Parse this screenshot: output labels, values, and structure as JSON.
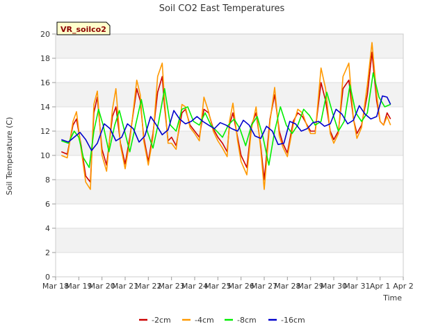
{
  "chart_data": {
    "type": "line",
    "title": "Soil CO2 East Temperatures",
    "xlabel": "Time",
    "ylabel": "Soil Temperature (C)",
    "ylim": [
      0,
      20
    ],
    "yticks": [
      0,
      2,
      4,
      6,
      8,
      10,
      12,
      14,
      16,
      18,
      20
    ],
    "xlim": [
      0,
      15
    ],
    "xticks": [
      {
        "pos": 0,
        "label": "Mar 18"
      },
      {
        "pos": 1,
        "label": "Mar 19"
      },
      {
        "pos": 2,
        "label": "Mar 20"
      },
      {
        "pos": 3,
        "label": "Mar 21"
      },
      {
        "pos": 4,
        "label": "Mar 22"
      },
      {
        "pos": 5,
        "label": "Mar 23"
      },
      {
        "pos": 6,
        "label": "Mar 24"
      },
      {
        "pos": 7,
        "label": "Mar 25"
      },
      {
        "pos": 8,
        "label": "Mar 26"
      },
      {
        "pos": 9,
        "label": "Mar 27"
      },
      {
        "pos": 10,
        "label": "Mar 28"
      },
      {
        "pos": 11,
        "label": "Mar 29"
      },
      {
        "pos": 12,
        "label": "Mar 30"
      },
      {
        "pos": 13,
        "label": "Mar 31"
      },
      {
        "pos": 14,
        "label": "Apr 1"
      },
      {
        "pos": 15,
        "label": "Apr 2"
      }
    ],
    "badge": "VR_soilco2",
    "series": [
      {
        "name": "-2cm",
        "color": "#cc0000",
        "x": [
          0.25,
          0.5,
          0.75,
          0.9,
          1.1,
          1.3,
          1.5,
          1.65,
          1.8,
          2.0,
          2.2,
          2.45,
          2.6,
          2.8,
          3.0,
          3.2,
          3.5,
          3.65,
          3.8,
          4.0,
          4.2,
          4.4,
          4.6,
          4.7,
          4.85,
          5.0,
          5.2,
          5.45,
          5.6,
          5.8,
          6.0,
          6.2,
          6.4,
          6.6,
          6.8,
          7.0,
          7.2,
          7.4,
          7.5,
          7.65,
          7.85,
          8.0,
          8.25,
          8.45,
          8.65,
          8.85,
          9.0,
          9.25,
          9.45,
          9.65,
          9.8,
          10.0,
          10.25,
          10.45,
          10.65,
          10.85,
          11.0,
          11.2,
          11.45,
          11.65,
          11.85,
          12.0,
          12.2,
          12.4,
          12.65,
          12.85,
          13.0,
          13.2,
          13.45,
          13.65,
          13.85,
          14.0,
          14.15,
          14.3,
          14.45
        ],
        "y": [
          10.3,
          10.1,
          12.5,
          13.0,
          10.8,
          8.3,
          7.8,
          13.5,
          14.8,
          10.5,
          9.2,
          13.2,
          14.0,
          11.0,
          9.3,
          11.5,
          15.5,
          14.5,
          11.5,
          9.5,
          11.8,
          15.2,
          16.5,
          14.0,
          11.2,
          11.5,
          10.8,
          13.5,
          13.8,
          12.5,
          12.0,
          11.5,
          13.8,
          13.5,
          12.2,
          11.5,
          11.0,
          10.3,
          12.5,
          13.5,
          11.5,
          10.0,
          9.0,
          12.5,
          13.5,
          10.8,
          8.0,
          13.0,
          15.0,
          12.0,
          11.0,
          10.2,
          12.8,
          13.5,
          13.2,
          12.5,
          12.0,
          12.0,
          16.0,
          14.5,
          12.0,
          11.3,
          12.0,
          15.5,
          16.2,
          13.0,
          11.8,
          12.5,
          15.0,
          18.5,
          14.5,
          12.8,
          12.5,
          13.5,
          13.0
        ]
      },
      {
        "name": "-4cm",
        "color": "#ff9900",
        "x": [
          0.25,
          0.5,
          0.75,
          0.9,
          1.1,
          1.3,
          1.5,
          1.65,
          1.8,
          2.0,
          2.2,
          2.45,
          2.6,
          2.8,
          3.0,
          3.2,
          3.5,
          3.65,
          3.8,
          4.0,
          4.2,
          4.4,
          4.6,
          4.7,
          4.85,
          5.0,
          5.2,
          5.45,
          5.6,
          5.8,
          6.0,
          6.2,
          6.4,
          6.6,
          6.8,
          7.0,
          7.2,
          7.4,
          7.5,
          7.65,
          7.85,
          8.0,
          8.25,
          8.45,
          8.65,
          8.85,
          9.0,
          9.25,
          9.45,
          9.65,
          9.8,
          10.0,
          10.25,
          10.45,
          10.65,
          10.85,
          11.0,
          11.2,
          11.45,
          11.65,
          11.85,
          12.0,
          12.2,
          12.4,
          12.65,
          12.85,
          13.0,
          13.2,
          13.45,
          13.65,
          13.85,
          14.0,
          14.15,
          14.3,
          14.45
        ],
        "y": [
          10.0,
          9.8,
          12.8,
          13.6,
          10.5,
          7.8,
          7.2,
          14.2,
          15.3,
          10.0,
          8.7,
          13.8,
          15.5,
          10.8,
          8.9,
          11.2,
          16.2,
          15.0,
          11.2,
          9.2,
          11.5,
          16.5,
          17.6,
          14.5,
          11.0,
          11.0,
          10.5,
          14.2,
          14.0,
          12.3,
          11.8,
          11.2,
          14.8,
          13.6,
          12.0,
          11.2,
          10.6,
          9.9,
          12.8,
          14.3,
          11.2,
          9.5,
          8.4,
          12.2,
          14.0,
          10.5,
          7.2,
          12.8,
          15.6,
          11.6,
          10.7,
          9.9,
          12.5,
          13.8,
          13.5,
          12.4,
          11.8,
          11.8,
          17.2,
          15.5,
          11.8,
          11.0,
          11.8,
          16.5,
          17.6,
          13.0,
          11.4,
          12.3,
          15.8,
          19.3,
          15.0,
          12.8,
          12.5,
          13.2,
          12.5
        ]
      },
      {
        "name": "-8cm",
        "color": "#00ee00",
        "x": [
          0.25,
          0.55,
          0.8,
          1.0,
          1.2,
          1.45,
          1.65,
          1.85,
          2.05,
          2.3,
          2.55,
          2.75,
          2.95,
          3.2,
          3.45,
          3.7,
          3.95,
          4.2,
          4.45,
          4.7,
          4.95,
          5.2,
          5.45,
          5.7,
          5.95,
          6.2,
          6.45,
          6.7,
          6.95,
          7.2,
          7.45,
          7.7,
          7.95,
          8.2,
          8.45,
          8.7,
          8.95,
          9.2,
          9.45,
          9.7,
          9.95,
          10.2,
          10.45,
          10.7,
          10.95,
          11.2,
          11.45,
          11.7,
          11.95,
          12.2,
          12.45,
          12.7,
          12.95,
          13.2,
          13.45,
          13.7,
          13.95,
          14.2,
          14.45
        ],
        "y": [
          11.2,
          11.0,
          12.0,
          11.5,
          9.8,
          9.0,
          12.0,
          13.8,
          12.5,
          10.3,
          12.5,
          13.7,
          12.2,
          10.3,
          12.5,
          14.6,
          12.0,
          10.6,
          12.8,
          15.5,
          12.5,
          12.0,
          13.8,
          14.0,
          12.8,
          12.5,
          13.5,
          12.5,
          12.0,
          11.5,
          12.5,
          13.0,
          12.2,
          10.8,
          12.5,
          13.2,
          11.5,
          9.2,
          12.0,
          14.0,
          12.5,
          11.8,
          12.5,
          13.8,
          13.3,
          12.5,
          12.8,
          15.2,
          13.5,
          12.0,
          12.8,
          15.8,
          13.5,
          12.8,
          13.5,
          16.8,
          14.8,
          14.0,
          14.2
        ]
      },
      {
        "name": "-16cm",
        "color": "#0000cc",
        "x": [
          0.25,
          0.55,
          0.8,
          1.05,
          1.3,
          1.55,
          1.8,
          2.1,
          2.35,
          2.6,
          2.85,
          3.1,
          3.35,
          3.6,
          3.85,
          4.1,
          4.35,
          4.6,
          4.85,
          5.1,
          5.35,
          5.6,
          5.85,
          6.1,
          6.35,
          6.6,
          6.85,
          7.1,
          7.35,
          7.6,
          7.85,
          8.1,
          8.35,
          8.6,
          8.85,
          9.1,
          9.35,
          9.6,
          9.85,
          10.1,
          10.35,
          10.6,
          10.85,
          11.1,
          11.35,
          11.6,
          11.85,
          12.1,
          12.35,
          12.6,
          12.85,
          13.1,
          13.35,
          13.6,
          13.85,
          14.1,
          14.3,
          14.45
        ],
        "y": [
          11.3,
          11.1,
          11.5,
          11.9,
          11.3,
          10.4,
          11.0,
          12.6,
          12.2,
          11.2,
          11.5,
          12.6,
          12.2,
          11.1,
          11.6,
          13.2,
          12.5,
          11.7,
          12.1,
          13.7,
          13.0,
          12.6,
          12.8,
          13.2,
          12.8,
          12.5,
          12.2,
          12.7,
          12.5,
          12.2,
          12.0,
          12.9,
          12.5,
          11.6,
          11.4,
          12.4,
          12.0,
          10.9,
          11.0,
          12.8,
          12.6,
          12.0,
          12.2,
          12.7,
          12.8,
          12.4,
          12.6,
          13.8,
          13.4,
          12.6,
          12.9,
          14.1,
          13.4,
          13.0,
          13.2,
          14.9,
          14.8,
          14.2
        ]
      }
    ]
  }
}
